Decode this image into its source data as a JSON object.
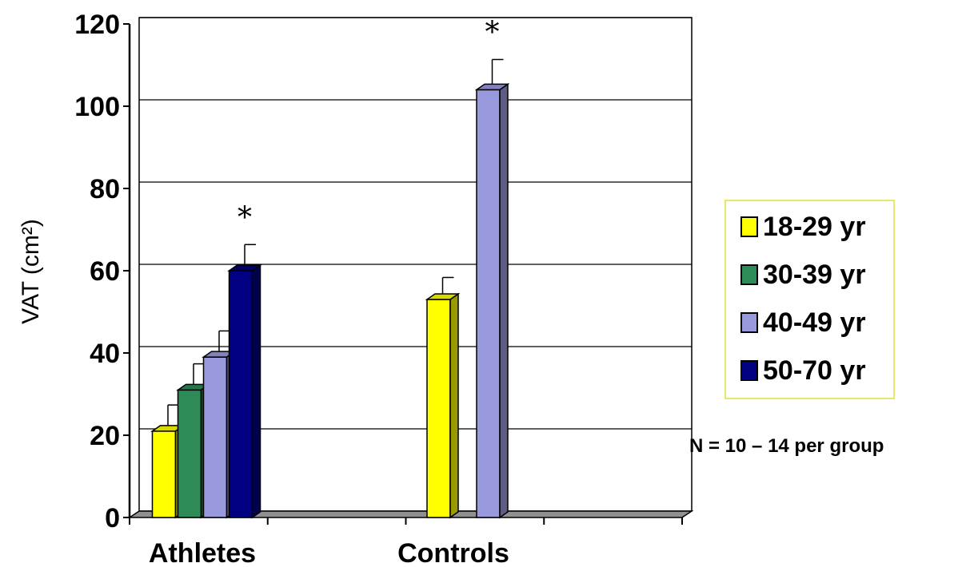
{
  "chart_data": {
    "type": "bar",
    "categories": [
      "Athletes",
      "Controls"
    ],
    "series": [
      {
        "name": "18-29 yr",
        "color": "#ffff00",
        "values": [
          21,
          53
        ],
        "errors": [
          5,
          4
        ]
      },
      {
        "name": "30-39 yr",
        "color": "#2e8b57",
        "values": [
          31,
          null
        ],
        "errors": [
          5,
          null
        ]
      },
      {
        "name": "40-49 yr",
        "color": "#9999dd",
        "values": [
          39,
          104
        ],
        "errors": [
          5,
          6
        ]
      },
      {
        "name": "50-70 yr",
        "color": "#000080",
        "values": [
          60,
          null
        ],
        "errors": [
          5,
          null
        ]
      }
    ],
    "significance": [
      {
        "category": "Athletes",
        "series": "50-70 yr",
        "marker": "*"
      },
      {
        "category": "Controls",
        "series": "40-49 yr",
        "marker": "*"
      }
    ],
    "ylabel": "VAT (cm²)",
    "xlabel": "",
    "ylim": [
      0,
      120
    ],
    "yticks": [
      0,
      20,
      40,
      60,
      80,
      100,
      120
    ],
    "grid": true,
    "legend_position": "right"
  },
  "note": "N = 10 – 14 per group"
}
